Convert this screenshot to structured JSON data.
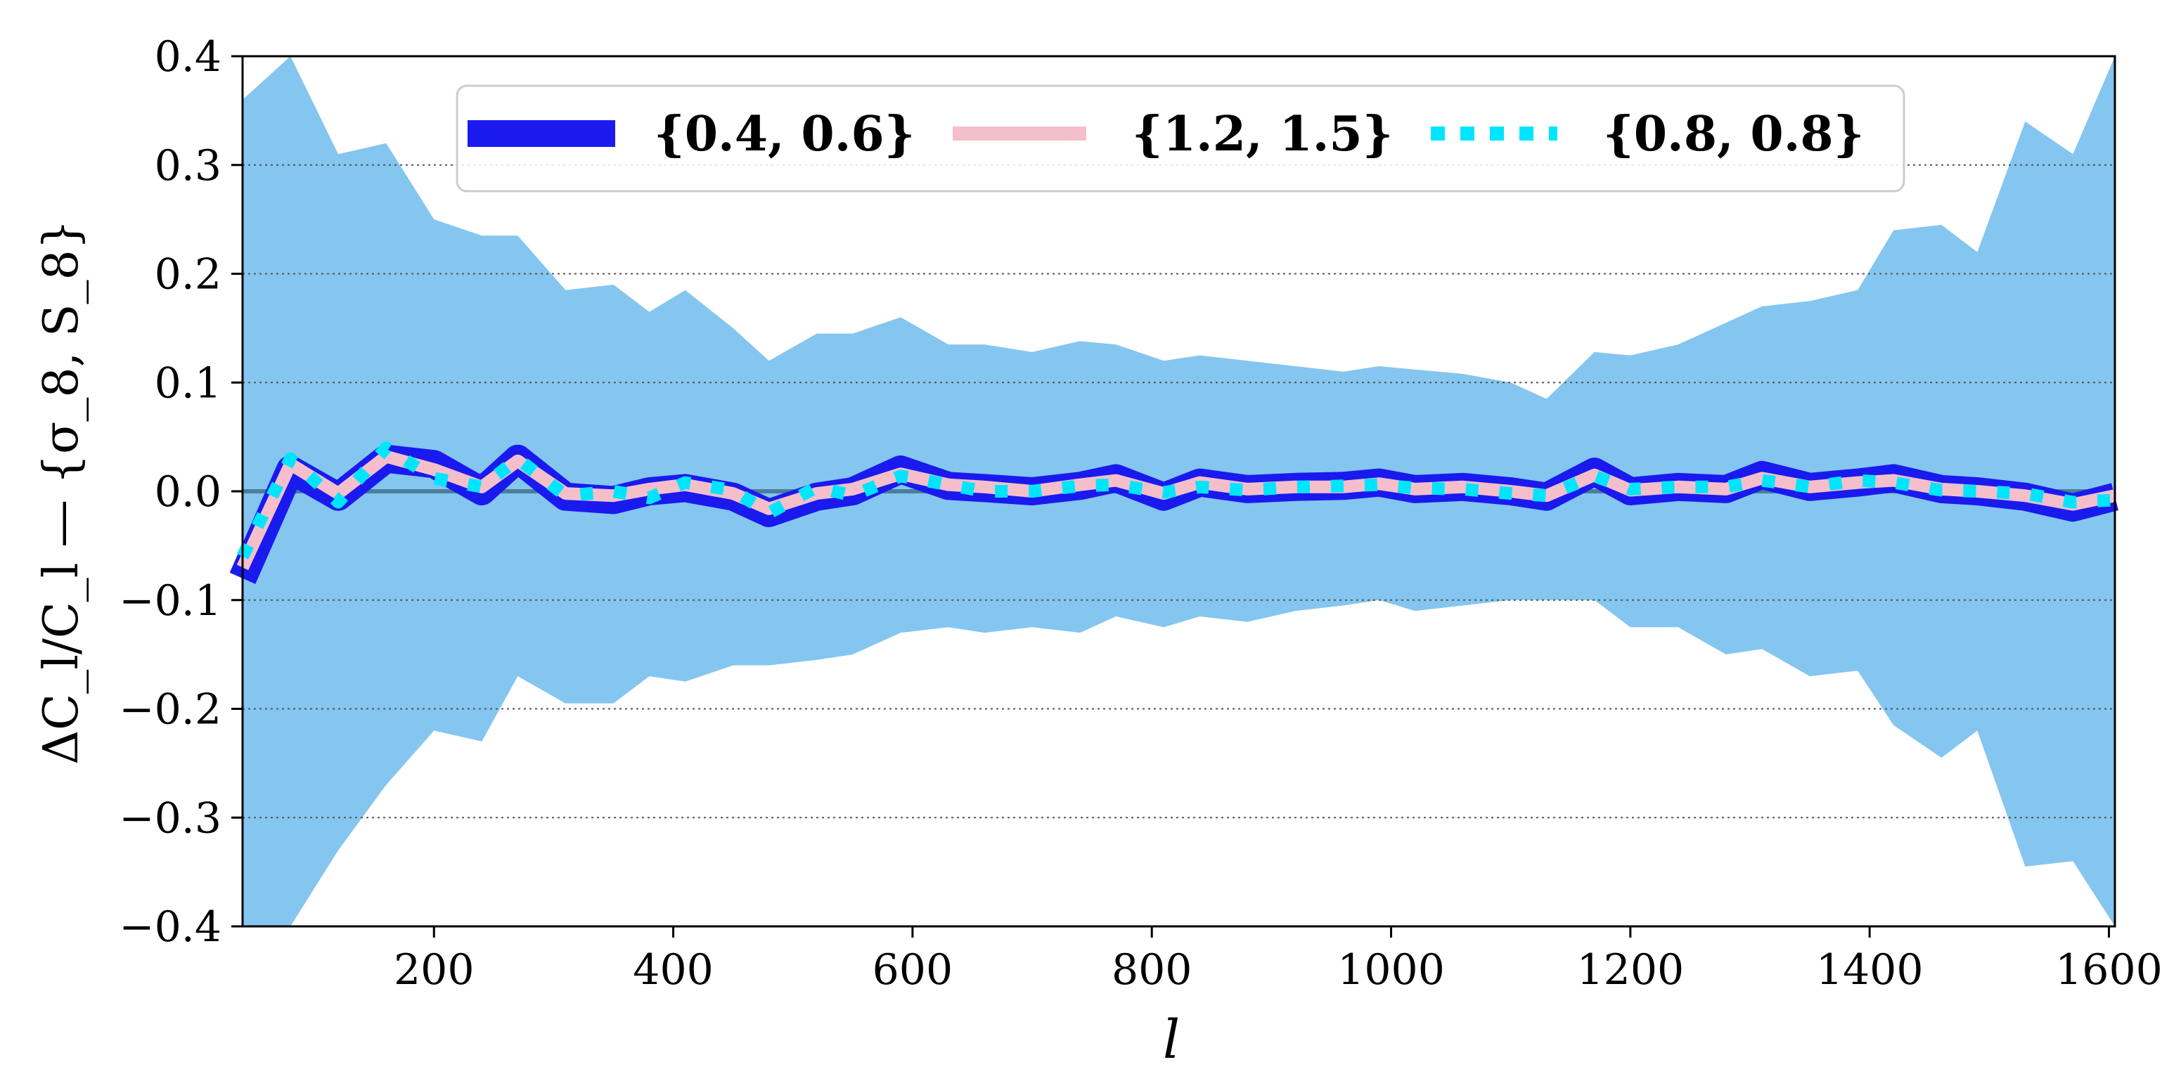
{
  "chart_data": {
    "type": "line",
    "xlabel": "l",
    "ylabel": "ΔC_l/C_l — {σ_8, S_8}",
    "xlim": [
      40,
      1605
    ],
    "ylim": [
      -0.4,
      0.4
    ],
    "x_ticks": [
      200,
      400,
      600,
      800,
      1000,
      1200,
      1400,
      1600
    ],
    "x_tick_labels": [
      "200",
      "400",
      "600",
      "800",
      "1000",
      "1200",
      "1400",
      "1600"
    ],
    "y_ticks": [
      -0.4,
      -0.3,
      -0.2,
      -0.1,
      0.0,
      0.1,
      0.2,
      0.3,
      0.4
    ],
    "y_tick_labels": [
      "−0.4",
      "−0.3",
      "−0.2",
      "−0.1",
      "0.0",
      "0.1",
      "0.2",
      "0.3",
      "0.4"
    ],
    "grid": "horizontal dotted",
    "legend_position": "top-center",
    "x": [
      40,
      80,
      120,
      160,
      200,
      240,
      270,
      310,
      350,
      380,
      410,
      450,
      480,
      520,
      550,
      590,
      630,
      660,
      700,
      740,
      770,
      810,
      840,
      880,
      920,
      960,
      990,
      1020,
      1060,
      1100,
      1130,
      1170,
      1200,
      1240,
      1280,
      1310,
      1350,
      1390,
      1420,
      1460,
      1490,
      1530,
      1570,
      1605
    ],
    "series": [
      {
        "name": "{0.4, 0.6}",
        "color": "#1a1aee",
        "style": "solid-thick",
        "values": [
          -0.08,
          0.02,
          -0.005,
          0.03,
          0.025,
          0.0,
          0.03,
          -0.005,
          -0.008,
          0.0,
          0.003,
          -0.005,
          -0.02,
          -0.005,
          0.0,
          0.02,
          0.005,
          0.003,
          0.0,
          0.005,
          0.012,
          -0.005,
          0.008,
          0.002,
          0.004,
          0.005,
          0.008,
          0.002,
          0.004,
          0.0,
          -0.005,
          0.018,
          0.0,
          0.004,
          0.002,
          0.015,
          0.004,
          0.008,
          0.012,
          0.002,
          0.0,
          -0.005,
          -0.015,
          -0.005
        ]
      },
      {
        "name": "{1.2, 1.5}",
        "color": "#f4bfcb",
        "style": "solid",
        "values": [
          -0.07,
          0.025,
          -0.002,
          0.032,
          0.02,
          0.004,
          0.028,
          -0.002,
          -0.004,
          0.002,
          0.006,
          -0.002,
          -0.016,
          -0.002,
          0.002,
          0.016,
          0.006,
          0.004,
          0.0,
          0.006,
          0.01,
          -0.002,
          0.008,
          0.002,
          0.004,
          0.004,
          0.007,
          0.002,
          0.004,
          0.0,
          -0.004,
          0.015,
          0.001,
          0.004,
          0.002,
          0.012,
          0.004,
          0.008,
          0.01,
          0.002,
          0.0,
          -0.004,
          -0.012,
          -0.004
        ]
      },
      {
        "name": "{0.8, 0.8}",
        "color": "#00e5ff",
        "style": "dotted",
        "values": [
          -0.06,
          0.03,
          -0.01,
          0.04,
          0.012,
          0.004,
          0.03,
          -0.004,
          0.0,
          -0.006,
          0.008,
          0.001,
          -0.02,
          0.004,
          -0.004,
          0.014,
          0.006,
          0.0,
          0.0,
          0.005,
          0.006,
          -0.001,
          0.004,
          0.001,
          0.004,
          0.005,
          0.006,
          0.003,
          0.002,
          -0.002,
          -0.004,
          0.014,
          0.002,
          0.004,
          0.004,
          0.01,
          0.004,
          0.01,
          0.008,
          0.001,
          0.0,
          -0.002,
          -0.01,
          -0.008
        ]
      }
    ],
    "bands": [
      {
        "color": "#6ebcec",
        "upper": [
          0.36,
          0.4,
          0.31,
          0.32,
          0.25,
          0.235,
          0.235,
          0.185,
          0.19,
          0.165,
          0.185,
          0.15,
          0.12,
          0.145,
          0.145,
          0.16,
          0.135,
          0.135,
          0.128,
          0.138,
          0.135,
          0.12,
          0.125,
          0.12,
          0.115,
          0.11,
          0.115,
          0.112,
          0.108,
          0.1,
          0.085,
          0.128,
          0.125,
          0.135,
          0.155,
          0.17,
          0.175,
          0.185,
          0.24,
          0.245,
          0.22,
          0.34,
          0.31,
          0.4
        ],
        "lower": [
          -0.4,
          -0.4,
          -0.33,
          -0.27,
          -0.22,
          -0.23,
          -0.17,
          -0.195,
          -0.195,
          -0.17,
          -0.175,
          -0.16,
          -0.16,
          -0.155,
          -0.15,
          -0.13,
          -0.125,
          -0.13,
          -0.125,
          -0.13,
          -0.115,
          -0.125,
          -0.115,
          -0.12,
          -0.11,
          -0.105,
          -0.1,
          -0.11,
          -0.105,
          -0.1,
          -0.1,
          -0.1,
          -0.125,
          -0.125,
          -0.15,
          -0.145,
          -0.17,
          -0.165,
          -0.215,
          -0.245,
          -0.22,
          -0.345,
          -0.34,
          -0.4
        ]
      }
    ]
  }
}
